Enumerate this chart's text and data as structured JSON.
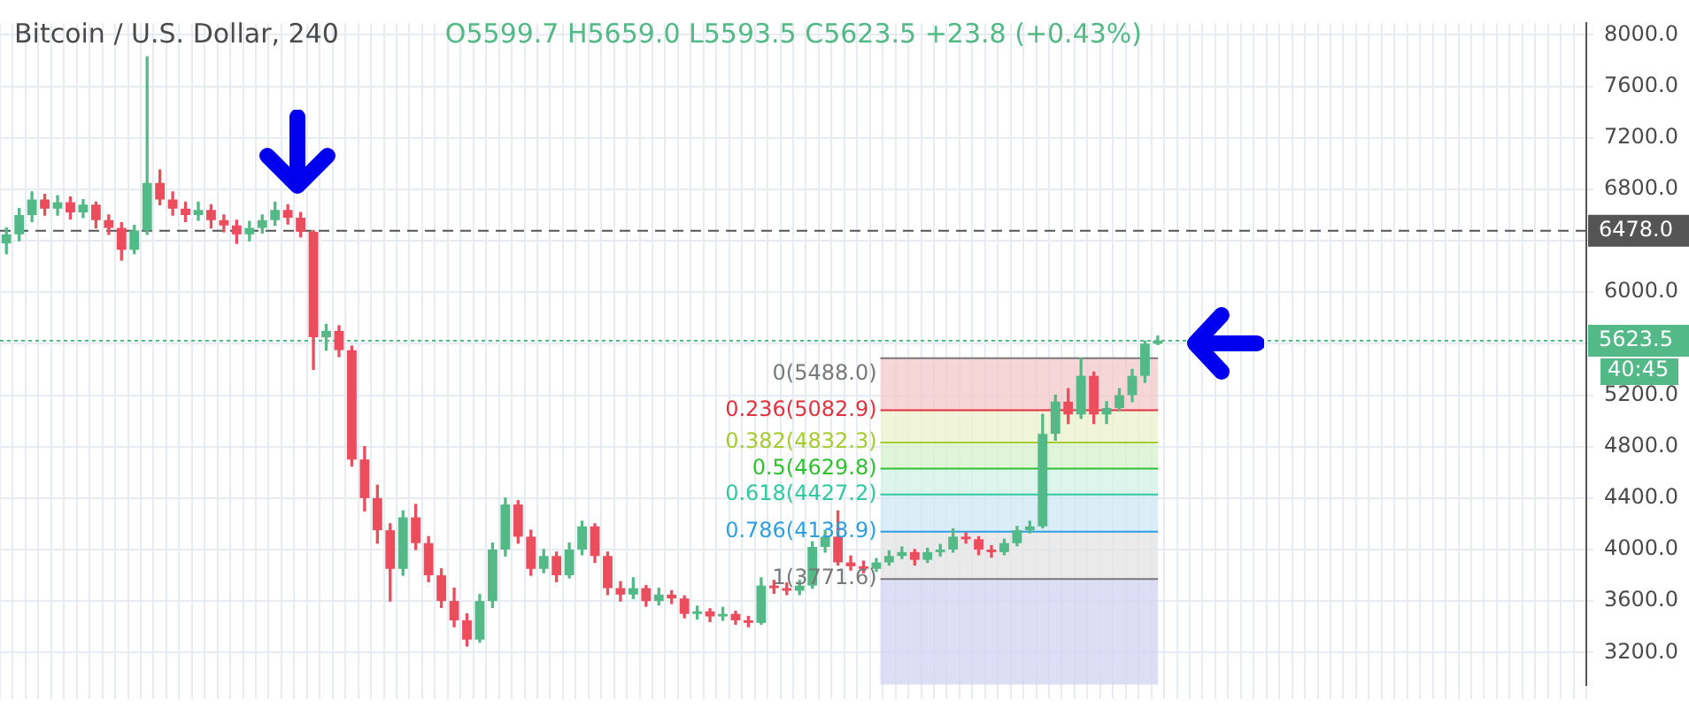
{
  "chart_data": {
    "type": "candlestick",
    "title": "Bitcoin / U.S. Dollar, 240",
    "annotations": [
      "O5599.7 H5659.0 L5593.5 C5623.5 +23.8 (+0.43%)",
      "40:45"
    ],
    "categories": [
      null,
      null,
      null,
      null,
      null,
      null,
      null,
      null,
      null,
      null,
      null,
      null,
      null,
      null,
      null,
      null,
      null,
      null,
      null,
      null,
      null,
      null,
      null,
      null,
      null,
      null,
      null,
      null,
      null,
      null,
      null,
      null,
      null,
      null,
      null,
      null,
      null,
      null,
      null,
      null,
      null,
      null,
      null,
      null,
      null,
      null,
      null,
      null,
      null,
      null,
      null,
      null,
      null,
      null,
      null,
      null,
      null,
      null,
      null,
      null,
      null,
      null,
      null,
      null,
      null,
      null,
      null,
      null,
      null,
      null,
      null,
      null,
      null,
      null,
      null,
      null,
      null,
      null,
      null,
      null,
      null,
      null,
      null,
      null,
      null,
      null,
      null,
      null,
      null,
      null,
      null,
      null,
      null,
      null,
      null,
      null,
      null,
      null,
      null,
      null,
      null,
      null,
      null,
      null,
      null,
      null,
      null,
      null,
      null,
      null,
      null,
      null,
      null,
      null,
      null,
      null,
      null,
      null,
      null,
      null,
      null,
      null,
      null,
      null
    ],
    "ohlc": [
      [
        6380,
        6500,
        6300,
        6450
      ],
      [
        6450,
        6650,
        6400,
        6600
      ],
      [
        6600,
        6780,
        6550,
        6720
      ],
      [
        6720,
        6760,
        6600,
        6650
      ],
      [
        6650,
        6750,
        6600,
        6700
      ],
      [
        6700,
        6740,
        6570,
        6620
      ],
      [
        6620,
        6720,
        6580,
        6680
      ],
      [
        6680,
        6700,
        6500,
        6560
      ],
      [
        6560,
        6600,
        6450,
        6500
      ],
      [
        6500,
        6540,
        6250,
        6330
      ],
      [
        6330,
        6520,
        6300,
        6480
      ],
      [
        6480,
        7830,
        6450,
        6850
      ],
      [
        6850,
        6950,
        6680,
        6720
      ],
      [
        6720,
        6780,
        6600,
        6650
      ],
      [
        6650,
        6700,
        6550,
        6600
      ],
      [
        6600,
        6700,
        6560,
        6640
      ],
      [
        6640,
        6680,
        6500,
        6560
      ],
      [
        6560,
        6600,
        6470,
        6520
      ],
      [
        6520,
        6560,
        6380,
        6450
      ],
      [
        6450,
        6550,
        6400,
        6500
      ],
      [
        6500,
        6600,
        6460,
        6560
      ],
      [
        6560,
        6700,
        6520,
        6640
      ],
      [
        6640,
        6680,
        6530,
        6580
      ],
      [
        6580,
        6620,
        6430,
        6470
      ],
      [
        6470,
        6480,
        5400,
        5650
      ],
      [
        5650,
        5750,
        5550,
        5700
      ],
      [
        5700,
        5740,
        5500,
        5550
      ],
      [
        5550,
        5580,
        4650,
        4700
      ],
      [
        4700,
        4800,
        4300,
        4400
      ],
      [
        4400,
        4500,
        4050,
        4150
      ],
      [
        4150,
        4200,
        3600,
        3850
      ],
      [
        3850,
        4300,
        3800,
        4250
      ],
      [
        4250,
        4350,
        4000,
        4050
      ],
      [
        4050,
        4100,
        3750,
        3800
      ],
      [
        3800,
        3850,
        3550,
        3600
      ],
      [
        3600,
        3700,
        3400,
        3450
      ],
      [
        3450,
        3500,
        3250,
        3300
      ],
      [
        3300,
        3650,
        3280,
        3600
      ],
      [
        3600,
        4050,
        3550,
        4000
      ],
      [
        4000,
        4400,
        3950,
        4350
      ],
      [
        4350,
        4380,
        4050,
        4100
      ],
      [
        4100,
        4150,
        3800,
        3850
      ],
      [
        3850,
        4000,
        3820,
        3950
      ],
      [
        3950,
        3980,
        3750,
        3800
      ],
      [
        3800,
        4050,
        3780,
        4000
      ],
      [
        4000,
        4220,
        3960,
        4180
      ],
      [
        4180,
        4200,
        3900,
        3950
      ],
      [
        3950,
        3980,
        3650,
        3700
      ],
      [
        3700,
        3750,
        3600,
        3650
      ],
      [
        3650,
        3780,
        3620,
        3700
      ],
      [
        3700,
        3720,
        3560,
        3600
      ],
      [
        3600,
        3700,
        3570,
        3650
      ],
      [
        3650,
        3680,
        3580,
        3620
      ],
      [
        3620,
        3640,
        3470,
        3500
      ],
      [
        3500,
        3560,
        3460,
        3520
      ],
      [
        3520,
        3540,
        3440,
        3480
      ],
      [
        3480,
        3550,
        3450,
        3500
      ],
      [
        3500,
        3520,
        3420,
        3450
      ],
      [
        3450,
        3480,
        3400,
        3430
      ],
      [
        3430,
        3780,
        3420,
        3720
      ],
      [
        3720,
        3760,
        3660,
        3700
      ],
      [
        3700,
        3740,
        3650,
        3680
      ],
      [
        3680,
        3760,
        3650,
        3720
      ],
      [
        3720,
        4060,
        3700,
        4020
      ],
      [
        4020,
        4150,
        3980,
        4100
      ],
      [
        4100,
        4300,
        3880,
        3900
      ],
      [
        3900,
        3950,
        3840,
        3870
      ],
      [
        3870,
        3910,
        3820,
        3850
      ],
      [
        3850,
        3930,
        3830,
        3900
      ],
      [
        3900,
        3990,
        3880,
        3950
      ],
      [
        3950,
        4020,
        3930,
        3980
      ],
      [
        3980,
        4000,
        3880,
        3920
      ],
      [
        3920,
        4010,
        3900,
        3980
      ],
      [
        3980,
        4040,
        3950,
        4000
      ],
      [
        4000,
        4160,
        3980,
        4100
      ],
      [
        4100,
        4130,
        4050,
        4080
      ],
      [
        4080,
        4100,
        3960,
        4000
      ],
      [
        4000,
        4030,
        3940,
        3980
      ],
      [
        3980,
        4080,
        3960,
        4050
      ],
      [
        4050,
        4180,
        4030,
        4150
      ],
      [
        4150,
        4220,
        4130,
        4180
      ],
      [
        4180,
        5050,
        4170,
        4900
      ],
      [
        4900,
        5200,
        4850,
        5150
      ],
      [
        5150,
        5250,
        4980,
        5050
      ],
      [
        5050,
        5488,
        5020,
        5350
      ],
      [
        5350,
        5380,
        4980,
        5050
      ],
      [
        5050,
        5150,
        4980,
        5100
      ],
      [
        5100,
        5250,
        5080,
        5200
      ],
      [
        5200,
        5400,
        5150,
        5350
      ],
      [
        5350,
        5620,
        5300,
        5600
      ],
      [
        5599.7,
        5659.0,
        5593.5,
        5623.5
      ],
      null,
      null,
      null,
      null,
      null,
      null,
      null,
      null,
      null,
      null,
      null,
      null,
      null,
      null,
      null,
      null,
      null,
      null,
      null,
      null,
      null,
      null,
      null,
      null,
      null,
      null,
      null,
      null,
      null,
      null,
      null,
      null,
      null
    ],
    "ylim": [
      2950,
      8090
    ],
    "yticks": [
      {
        "value": 3200,
        "label": "3200.0"
      },
      {
        "value": 3600,
        "label": "3600.0"
      },
      {
        "value": 4000,
        "label": "4000.0"
      },
      {
        "value": 4400,
        "label": "4400.0"
      },
      {
        "value": 4800,
        "label": "4800.0"
      },
      {
        "value": 5200,
        "label": "5200.0"
      },
      {
        "value": 5600,
        "label": null
      },
      {
        "value": 6000,
        "label": "6000.0"
      },
      {
        "value": 6400,
        "label": null
      },
      {
        "value": 6800,
        "label": "6800.0"
      },
      {
        "value": 7200,
        "label": "7200.0"
      },
      {
        "value": 7600,
        "label": "7600.0"
      },
      {
        "value": 8000,
        "label": "8000.0"
      }
    ],
    "grid": true,
    "ref_lines": [
      {
        "axis": "y",
        "value": 6478.0,
        "label": "6478.0",
        "color": "#555555",
        "line_style": "dashed"
      },
      {
        "axis": "y",
        "value": 5623.5,
        "label": "5623.5",
        "color": "#53b987",
        "line_style": "dotted"
      },
      {
        "axis": "y",
        "value": 5488.0,
        "label": "0(5488.0)",
        "color": "#787878",
        "line_style": "solid"
      },
      {
        "axis": "y",
        "value": 5082.9,
        "label": "0.236(5082.9)",
        "color": "#e0333f",
        "line_style": "solid"
      },
      {
        "axis": "y",
        "value": 4832.3,
        "label": "0.382(4832.3)",
        "color": "#a5cc33",
        "line_style": "solid"
      },
      {
        "axis": "y",
        "value": 4629.8,
        "label": "0.5(4629.8)",
        "color": "#2ec12e",
        "line_style": "solid"
      },
      {
        "axis": "y",
        "value": 4427.2,
        "label": "0.618(4427.2)",
        "color": "#30c9a0",
        "line_style": "solid"
      },
      {
        "axis": "y",
        "value": 4138.9,
        "label": "0.786(4138.9)",
        "color": "#2f9fe0",
        "line_style": "solid"
      },
      {
        "axis": "y",
        "value": 3771.6,
        "label": "1(3771.6)",
        "color": "#787878",
        "line_style": "solid"
      }
    ],
    "bands": [
      {
        "axis": "y",
        "from": 5082.9,
        "to": 5488.0,
        "color": "#f4cccc"
      },
      {
        "axis": "y",
        "from": 4832.3,
        "to": 5082.9,
        "color": "#ecf3cf"
      },
      {
        "axis": "y",
        "from": 4629.8,
        "to": 4832.3,
        "color": "#d8f2d0"
      },
      {
        "axis": "y",
        "from": 4427.2,
        "to": 4629.8,
        "color": "#d4f3e8"
      },
      {
        "axis": "y",
        "from": 4138.9,
        "to": 4427.2,
        "color": "#d2e8f5"
      },
      {
        "axis": "y",
        "from": 3771.6,
        "to": 4138.9,
        "color": "#e5e5e5"
      },
      {
        "axis": "y",
        "from": 2950,
        "to": 3771.6,
        "color": "#d4d4f2"
      }
    ]
  }
}
